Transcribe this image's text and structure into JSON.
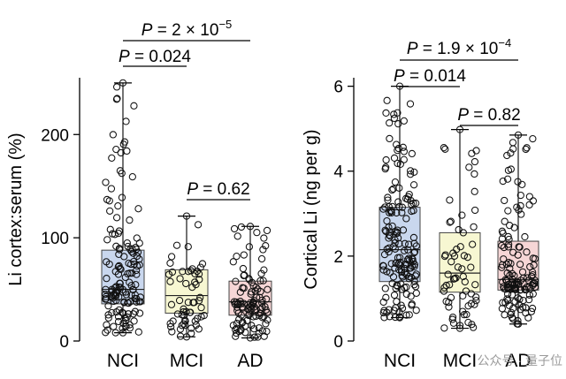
{
  "chart_data": [
    {
      "type": "box",
      "ylabel": "Li cortex:serum (%)",
      "categories": [
        "NCI",
        "MCI",
        "AD"
      ],
      "yticks": [
        0,
        100,
        200
      ],
      "ylim": [
        0,
        255
      ],
      "colors": [
        "#c9d7ee",
        "#f7f7d2",
        "#f6d6d6"
      ],
      "boxes": [
        {
          "category": "NCI",
          "min": 8,
          "q1": 36,
          "median": 50,
          "q3": 88,
          "max": 250,
          "n": 150,
          "seed": 11
        },
        {
          "category": "MCI",
          "min": 4,
          "q1": 27,
          "median": 44,
          "q3": 69,
          "max": 121,
          "n": 60,
          "seed": 23
        },
        {
          "category": "AD",
          "min": 3,
          "q1": 25,
          "median": 38,
          "q3": 58,
          "max": 111,
          "n": 110,
          "seed": 37
        }
      ],
      "comparisons": [
        {
          "from": "NCI",
          "to": "AD",
          "italic": "P",
          "text": " = 2 × 10",
          "exp": "−5"
        },
        {
          "from": "NCI",
          "to": "MCI",
          "italic": "P",
          "text": " = 0.024",
          "exp": ""
        },
        {
          "from": "MCI",
          "to": "AD",
          "italic": "P",
          "text": " = 0.62",
          "exp": ""
        }
      ]
    },
    {
      "type": "box",
      "ylabel": "Cortical Li (ng per g)",
      "categories": [
        "NCI",
        "MCI",
        "AD"
      ],
      "yticks": [
        0,
        2,
        4,
        6
      ],
      "ylim": [
        0,
        6.2
      ],
      "colors": [
        "#c9d7ee",
        "#f7f7d2",
        "#f6d6d6"
      ],
      "boxes": [
        {
          "category": "NCI",
          "min": 0.55,
          "q1": 1.4,
          "median": 2.15,
          "q3": 3.15,
          "max": 6.0,
          "n": 170,
          "seed": 51
        },
        {
          "category": "MCI",
          "min": 0.3,
          "q1": 1.15,
          "median": 1.6,
          "q3": 2.55,
          "max": 4.98,
          "n": 65,
          "seed": 67
        },
        {
          "category": "AD",
          "min": 0.4,
          "q1": 1.2,
          "median": 1.45,
          "q3": 2.35,
          "max": 4.85,
          "n": 140,
          "seed": 79
        }
      ],
      "comparisons": [
        {
          "from": "NCI",
          "to": "AD",
          "italic": "P",
          "text": " = 1.9 × 10",
          "exp": "−4"
        },
        {
          "from": "NCI",
          "to": "MCI",
          "italic": "P",
          "text": " = 0.014",
          "exp": ""
        },
        {
          "from": "MCI",
          "to": "AD",
          "italic": "P",
          "text": " = 0.82",
          "exp": ""
        }
      ]
    }
  ],
  "watermark": "公众号 · 量子位"
}
